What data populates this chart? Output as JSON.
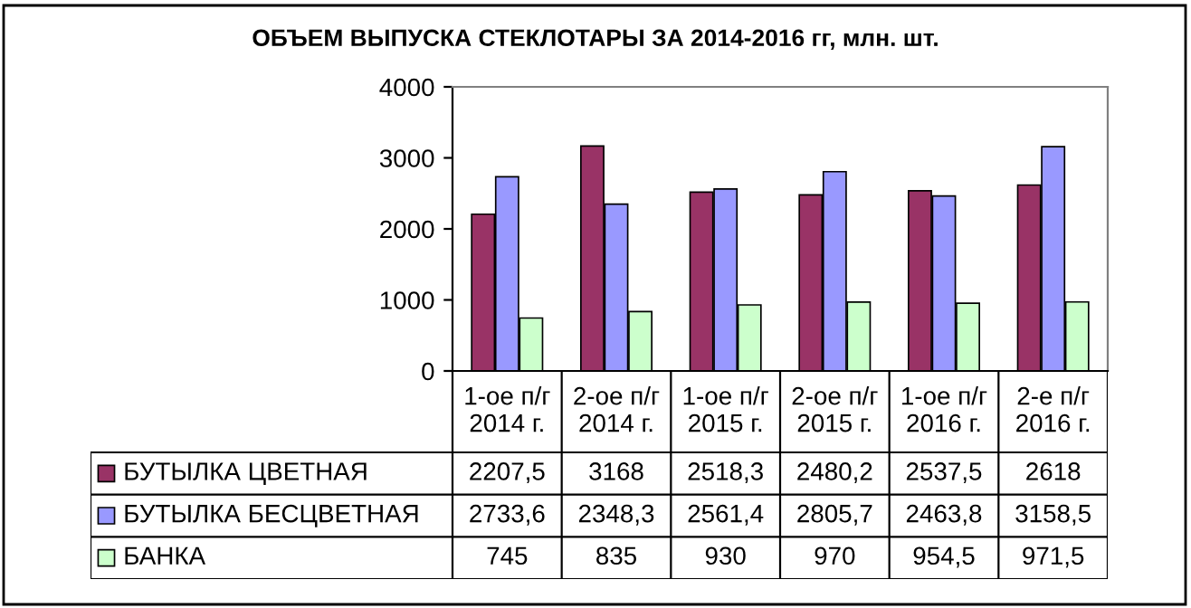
{
  "chart_data": {
    "type": "bar",
    "title": "ОБЪЕМ ВЫПУСКА СТЕКЛОТАРЫ ЗА 2014-2016 гг, млн. шт.",
    "categories": [
      "1-ое п/г\n2014 г.",
      "2-ое п/г\n2014 г.",
      "1-ое п/г\n2015 г.",
      "2-ое п/г\n2015 г.",
      "1-ое п/г\n2016 г.",
      "2-е п/г\n2016 г."
    ],
    "series": [
      {
        "name": "БУТЫЛКА ЦВЕТНАЯ",
        "color": "#993366",
        "values": [
          2207.5,
          3168,
          2518.3,
          2480.2,
          2537.5,
          2618
        ],
        "value_labels": [
          "2207,5",
          "3168",
          "2518,3",
          "2480,2",
          "2537,5",
          "2618"
        ]
      },
      {
        "name": "БУТЫЛКА БЕСЦВЕТНАЯ",
        "color": "#9999ff",
        "values": [
          2733.6,
          2348.3,
          2561.4,
          2805.7,
          2463.8,
          3158.5
        ],
        "value_labels": [
          "2733,6",
          "2348,3",
          "2561,4",
          "2805,7",
          "2463,8",
          "3158,5"
        ]
      },
      {
        "name": "БАНКА",
        "color": "#ccffcc",
        "values": [
          745,
          835,
          930,
          970,
          954.5,
          971.5
        ],
        "value_labels": [
          "745",
          "835",
          "930",
          "970",
          "954,5",
          "971,5"
        ]
      }
    ],
    "ylim": [
      0,
      4000
    ],
    "yticks": [
      0,
      1000,
      2000,
      3000,
      4000
    ],
    "grid": false,
    "legend": "bottom"
  }
}
